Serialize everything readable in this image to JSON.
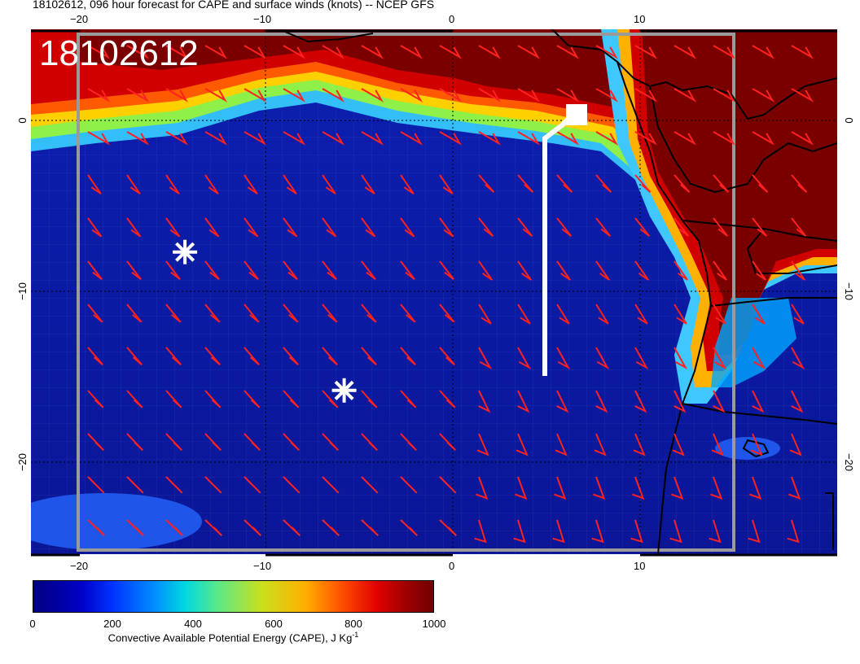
{
  "title": "18102612, 096 hour forecast for CAPE and surface winds (knots) -- NCEP GFS",
  "map": {
    "stamp": "18102612",
    "top_lon_labels": [
      "−20",
      "−10",
      "0",
      "10"
    ],
    "bottom_lon_labels": [
      "−20",
      "−10",
      "0",
      "10"
    ],
    "left_lat_labels": [
      "0",
      "−10",
      "−20"
    ],
    "right_lat_labels": [
      "0",
      "−10",
      "−20"
    ],
    "markers": [
      {
        "type": "asterisk",
        "lon": -14.3,
        "lat": -7.7
      },
      {
        "type": "asterisk",
        "lon": -5.8,
        "lat": -15.8
      }
    ],
    "track": {
      "color": "#ffffff"
    },
    "colors": {
      "ocean_low": "#0a1a9e",
      "cape_high": "#7a0000",
      "barbs": "#ff2020",
      "coast": "#000000"
    }
  },
  "colorbar": {
    "ticks": [
      "0",
      "200",
      "400",
      "600",
      "800",
      "1000"
    ],
    "label": "Convective Available Potential Energy (CAPE), J Kg",
    "label_sup": "-1"
  }
}
